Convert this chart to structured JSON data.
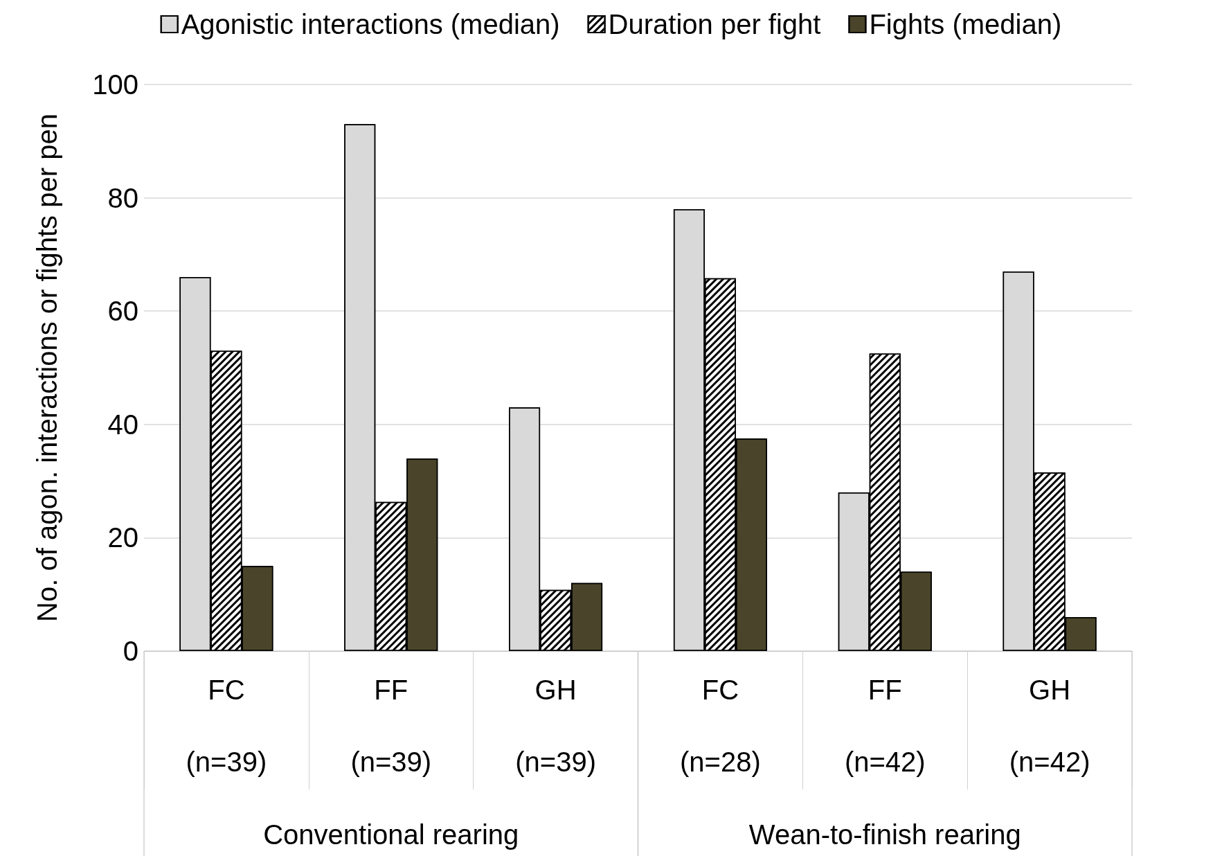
{
  "chart_data": {
    "type": "bar",
    "ylabel": "No. of agon. interactions or fights per pen",
    "categories": [
      "FC\n\n(n=39)",
      "FF\n\n(n=39)",
      "GH\n\n(n=39)",
      "FC\n\n(n=28)",
      "FF\n\n(n=42)",
      "GH\n\n(n=42)"
    ],
    "series": [
      {
        "name": "Agonistic interactions (median)",
        "color": "#d9d9d9",
        "values": [
          66,
          93,
          43,
          78,
          28,
          67
        ]
      },
      {
        "name": "Duration per fight",
        "color": "#ffffff",
        "values": [
          53,
          26.3,
          10.8,
          65.8,
          52.5,
          31.5
        ]
      },
      {
        "name": "Fights (median)",
        "color": "#4a452a",
        "values": [
          15,
          34,
          12,
          37.5,
          14,
          6
        ]
      }
    ],
    "annotations": [
      "Conventional rearing",
      "Wean-to-finish rearing"
    ],
    "ylim": [
      0,
      100
    ],
    "yticks": [
      0,
      20,
      40,
      60,
      80,
      100
    ],
    "grid": "y",
    "legend": "top"
  }
}
